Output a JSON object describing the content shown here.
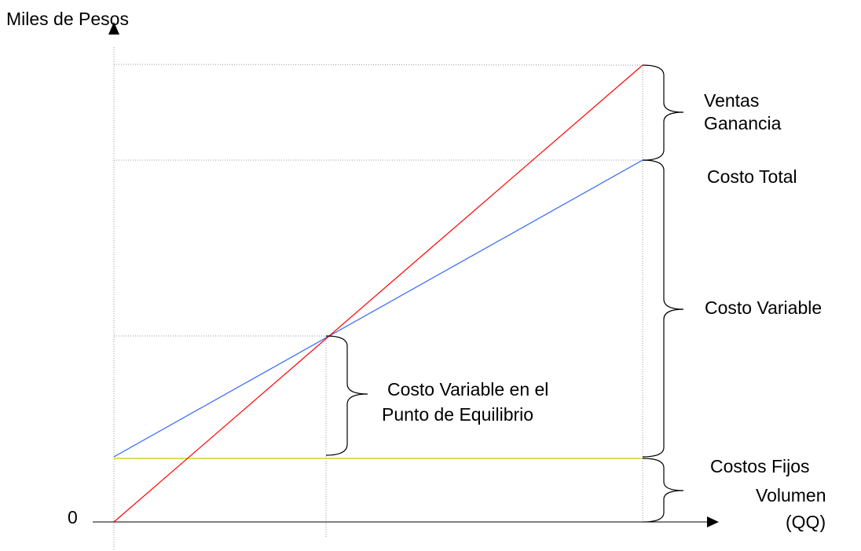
{
  "axis": {
    "y_label": "Miles de Pesos",
    "origin_label": "0",
    "x_label_line1": "Volumen",
    "x_label_line2": "(QQ)"
  },
  "annotations": {
    "ventas": "Ventas",
    "ganancia": "Ganancia",
    "costo_total": "Costo Total",
    "costo_variable": "Costo Variable",
    "costo_variable_pe_line1": "Costo Variable en el",
    "costo_variable_pe_line2": "Punto de Equilibrio",
    "costos_fijos": "Costos Fijos"
  },
  "colors": {
    "sales_line": "#ff0000",
    "total_cost_line": "#3366ff",
    "fixed_cost_line": "#cccc00",
    "axis": "#000000",
    "guide": "#999999"
  }
}
